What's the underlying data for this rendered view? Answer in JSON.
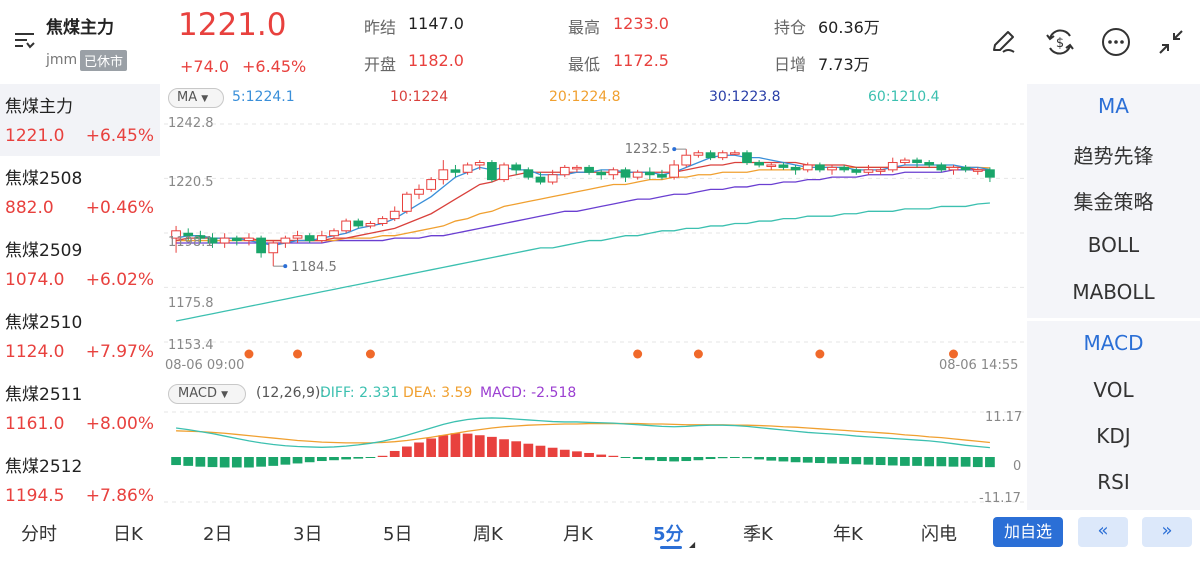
{
  "header": {
    "name": "焦煤主力",
    "code": "jmm",
    "status": "已休市",
    "price": "1221.0",
    "change": "+74.0",
    "change_pct": "+6.45%",
    "stats": [
      {
        "label": "昨结",
        "value": "1147.0",
        "color": "#222222"
      },
      {
        "label": "最高",
        "value": "1233.0",
        "color": "#e8413e"
      },
      {
        "label": "持仓",
        "value": "60.36万",
        "color": "#222222"
      },
      {
        "label": "开盘",
        "value": "1182.0",
        "color": "#e8413e"
      },
      {
        "label": "最低",
        "value": "1172.5",
        "color": "#e8413e"
      },
      {
        "label": "日增",
        "value": "7.73万",
        "color": "#222222"
      }
    ],
    "icons": [
      "edit-icon",
      "currency-exchange-icon",
      "more-icon",
      "collapse-icon"
    ]
  },
  "sidebar": {
    "items": [
      {
        "name": "焦煤主力",
        "price": "1221.0",
        "pct": "+6.45%"
      },
      {
        "name": "焦煤2508",
        "price": "882.0",
        "pct": "+0.46%"
      },
      {
        "name": "焦煤2509",
        "price": "1074.0",
        "pct": "+6.02%"
      },
      {
        "name": "焦煤2510",
        "price": "1124.0",
        "pct": "+7.97%"
      },
      {
        "name": "焦煤2511",
        "price": "1161.0",
        "pct": "+8.00%"
      },
      {
        "name": "焦煤2512",
        "price": "1194.5",
        "pct": "+7.86%"
      }
    ]
  },
  "right_panel": {
    "indicators_top": [
      "MA",
      "趋势先锋",
      "集金策略",
      "BOLL",
      "MABOLL"
    ],
    "indicators_bottom": [
      "MACD",
      "VOL",
      "KDJ",
      "RSI"
    ]
  },
  "chart": {
    "ma_selector": "MA",
    "ma_legend": [
      {
        "text": "5:1224.1",
        "color": "#3a8fd9"
      },
      {
        "text": "10:1224",
        "color": "#d9413c"
      },
      {
        "text": "20:1224.8",
        "color": "#f0a030"
      },
      {
        "text": "30:1223.8",
        "color": "#2a3fa8"
      },
      {
        "text": "60:1210.4",
        "color": "#3cc0b0"
      }
    ],
    "y_labels": [
      "1242.8",
      "1220.5",
      "1198.1",
      "1175.8",
      "1153.4"
    ],
    "time_start": "08-06 09:00",
    "time_end": "08-06 14:55",
    "high_mark": "1232.5",
    "low_mark": "1184.5",
    "macd_selector": "MACD",
    "macd_params": "(12,26,9):",
    "diff": "DIFF: 2.331",
    "dea": "DEA: 3.59",
    "macd_val": "MACD: -2.518",
    "macd_y_labels": [
      "11.17",
      "0",
      "-11.17"
    ],
    "colors": {
      "up": "#e8413e",
      "down": "#1aa56a",
      "diff": "#3cc0b0",
      "dea": "#f0a030",
      "macd": "#9b3fd1"
    }
  },
  "chart_data": {
    "type": "candlestick",
    "interval": "5分",
    "ylim": [
      1153.4,
      1242.8
    ],
    "x_range": [
      "08-06 09:00",
      "08-06 14:55"
    ],
    "candles": [
      [
        1196,
        1199,
        1190,
        1201
      ],
      [
        1198,
        1197,
        1195,
        1200
      ],
      [
        1197,
        1196,
        1194,
        1199
      ],
      [
        1196,
        1194,
        1192,
        1198
      ],
      [
        1194,
        1196,
        1192,
        1198
      ],
      [
        1196,
        1195,
        1193,
        1197
      ],
      [
        1195,
        1196,
        1193,
        1198
      ],
      [
        1196,
        1190,
        1188,
        1197
      ],
      [
        1190,
        1194,
        1184.5,
        1195
      ],
      [
        1194,
        1196,
        1192,
        1197
      ],
      [
        1196,
        1197,
        1194,
        1199
      ],
      [
        1197,
        1195,
        1194,
        1198
      ],
      [
        1195,
        1197,
        1194,
        1199
      ],
      [
        1197,
        1199,
        1196,
        1200
      ],
      [
        1199,
        1203,
        1198,
        1204
      ],
      [
        1203,
        1201,
        1200,
        1204
      ],
      [
        1201,
        1202,
        1200,
        1203
      ],
      [
        1202,
        1204,
        1201,
        1205
      ],
      [
        1204,
        1207,
        1203,
        1209
      ],
      [
        1207,
        1214,
        1206,
        1215
      ],
      [
        1214,
        1216,
        1212,
        1218
      ],
      [
        1216,
        1220,
        1215,
        1221
      ],
      [
        1220,
        1224,
        1218,
        1228
      ],
      [
        1224,
        1223,
        1221,
        1226
      ],
      [
        1223,
        1226,
        1222,
        1227
      ],
      [
        1226,
        1227,
        1224,
        1228
      ],
      [
        1227,
        1220,
        1219,
        1228
      ],
      [
        1220,
        1226,
        1219,
        1227
      ],
      [
        1226,
        1224,
        1222,
        1227
      ],
      [
        1224,
        1221,
        1220,
        1225
      ],
      [
        1221,
        1219,
        1218,
        1223
      ],
      [
        1219,
        1222,
        1218,
        1224
      ],
      [
        1222,
        1225,
        1221,
        1226
      ],
      [
        1225,
        1225,
        1223,
        1226
      ],
      [
        1225,
        1223,
        1222,
        1226
      ],
      [
        1223,
        1222,
        1220,
        1224
      ],
      [
        1222,
        1224,
        1220,
        1225
      ],
      [
        1224,
        1221,
        1219,
        1225
      ],
      [
        1221,
        1223,
        1220,
        1224
      ],
      [
        1223,
        1222,
        1220,
        1225
      ],
      [
        1222,
        1221,
        1220,
        1224
      ],
      [
        1221,
        1226,
        1220,
        1228
      ],
      [
        1226,
        1230,
        1225,
        1232.5
      ],
      [
        1230,
        1231,
        1229,
        1232
      ],
      [
        1231,
        1229,
        1228,
        1232
      ],
      [
        1229,
        1231,
        1228,
        1232
      ],
      [
        1231,
        1231,
        1230,
        1232
      ],
      [
        1231,
        1227,
        1226,
        1232
      ],
      [
        1227,
        1226,
        1225,
        1228
      ],
      [
        1226,
        1226,
        1224,
        1227
      ],
      [
        1226,
        1225,
        1224,
        1227
      ],
      [
        1225,
        1224,
        1222,
        1226
      ],
      [
        1224,
        1226,
        1223,
        1227
      ],
      [
        1226,
        1224,
        1223,
        1227
      ],
      [
        1224,
        1225,
        1222,
        1226
      ],
      [
        1225,
        1224,
        1223,
        1226
      ],
      [
        1224,
        1223,
        1222,
        1225
      ],
      [
        1223,
        1224,
        1222,
        1226
      ],
      [
        1224,
        1224,
        1222,
        1225
      ],
      [
        1224,
        1227,
        1223,
        1229
      ],
      [
        1227,
        1228,
        1226,
        1229
      ],
      [
        1228,
        1227,
        1225,
        1229
      ],
      [
        1227,
        1226,
        1225,
        1228
      ],
      [
        1226,
        1224,
        1223,
        1227
      ],
      [
        1224,
        1225,
        1222,
        1226
      ],
      [
        1225,
        1224,
        1223,
        1226
      ],
      [
        1224,
        1224,
        1222,
        1225
      ],
      [
        1224,
        1221,
        1219,
        1225
      ]
    ],
    "ma5": [
      1196,
      1197,
      1197,
      1196,
      1196,
      1196,
      1195,
      1194,
      1193,
      1194,
      1195,
      1195,
      1196,
      1197,
      1198,
      1200,
      1201,
      1202,
      1204,
      1207,
      1210,
      1213,
      1217,
      1221,
      1223,
      1225,
      1224,
      1225,
      1224,
      1224,
      1222,
      1222,
      1222,
      1223,
      1223,
      1224,
      1224,
      1223,
      1223,
      1223,
      1222,
      1223,
      1225,
      1227,
      1229,
      1230,
      1230,
      1229,
      1229,
      1228,
      1227,
      1226,
      1225,
      1225,
      1225,
      1225,
      1224,
      1224,
      1224,
      1225,
      1226,
      1226,
      1226,
      1226,
      1226,
      1225,
      1225,
      1224.1
    ],
    "ma10": [
      1195,
      1196,
      1196,
      1196,
      1196,
      1196,
      1196,
      1195,
      1195,
      1195,
      1195,
      1195,
      1195,
      1196,
      1196,
      1197,
      1198,
      1199,
      1200,
      1202,
      1204,
      1206,
      1209,
      1212,
      1215,
      1218,
      1219,
      1221,
      1222,
      1223,
      1223,
      1223,
      1223,
      1223,
      1223,
      1223,
      1223,
      1223,
      1223,
      1223,
      1223,
      1223,
      1224,
      1225,
      1226,
      1226,
      1227,
      1227,
      1227,
      1227,
      1227,
      1227,
      1226,
      1226,
      1226,
      1226,
      1225,
      1225,
      1225,
      1225,
      1225,
      1225,
      1225,
      1225,
      1225,
      1225,
      1224,
      1224
    ],
    "ma20": [
      1195,
      1195,
      1195,
      1195,
      1195,
      1195,
      1195,
      1195,
      1195,
      1195,
      1195,
      1195,
      1195,
      1195,
      1196,
      1196,
      1196,
      1197,
      1197,
      1198,
      1199,
      1200,
      1201,
      1203,
      1204,
      1206,
      1207,
      1209,
      1210,
      1211,
      1212,
      1213,
      1214,
      1215,
      1216,
      1217,
      1218,
      1218,
      1219,
      1220,
      1220,
      1221,
      1221,
      1222,
      1222,
      1223,
      1223,
      1223,
      1224,
      1224,
      1224,
      1224,
      1225,
      1225,
      1225,
      1225,
      1225,
      1225,
      1225,
      1225,
      1225,
      1225,
      1225,
      1225,
      1225,
      1225,
      1225,
      1224.8
    ],
    "ma30": [
      1194,
      1194,
      1194,
      1194,
      1194,
      1194,
      1194,
      1194,
      1194,
      1194,
      1194,
      1194,
      1194,
      1195,
      1195,
      1195,
      1195,
      1195,
      1196,
      1196,
      1196,
      1197,
      1197,
      1198,
      1199,
      1200,
      1201,
      1202,
      1203,
      1204,
      1205,
      1206,
      1207,
      1207,
      1208,
      1209,
      1210,
      1211,
      1212,
      1212,
      1213,
      1214,
      1214,
      1215,
      1216,
      1216,
      1217,
      1217,
      1218,
      1218,
      1219,
      1219,
      1220,
      1220,
      1221,
      1221,
      1221,
      1222,
      1222,
      1222,
      1223,
      1223,
      1223,
      1223,
      1224,
      1224,
      1224,
      1223.8
    ],
    "ma60": [
      1162,
      1163,
      1164,
      1165,
      1166,
      1167,
      1168,
      1169,
      1170,
      1171,
      1172,
      1173,
      1174,
      1175,
      1176,
      1177,
      1178,
      1179,
      1180,
      1181,
      1182,
      1183,
      1184,
      1185,
      1186,
      1187,
      1188,
      1189,
      1190,
      1191,
      1192,
      1192,
      1193,
      1194,
      1195,
      1195,
      1196,
      1197,
      1197,
      1198,
      1199,
      1199,
      1200,
      1200,
      1201,
      1201,
      1202,
      1202,
      1203,
      1203,
      1204,
      1204,
      1205,
      1205,
      1205,
      1206,
      1206,
      1207,
      1207,
      1207,
      1208,
      1208,
      1208,
      1209,
      1209,
      1209,
      1210,
      1210.4
    ],
    "event_markers_index": [
      6,
      10,
      16,
      38,
      43,
      53,
      64
    ],
    "macd": {
      "ylim": [
        -11.17,
        11.17
      ],
      "diff": [
        7.2,
        6.8,
        6.3,
        5.8,
        5.2,
        4.6,
        4.0,
        3.5,
        3.1,
        2.8,
        2.6,
        2.5,
        2.4,
        2.5,
        2.7,
        3.0,
        3.4,
        3.9,
        4.6,
        5.4,
        6.3,
        7.2,
        8.1,
        8.8,
        9.3,
        9.6,
        9.7,
        9.6,
        9.4,
        9.2,
        9.0,
        8.8,
        8.7,
        8.7,
        8.6,
        8.5,
        8.4,
        8.2,
        8.0,
        7.8,
        7.6,
        7.5,
        7.6,
        7.8,
        7.9,
        7.9,
        7.8,
        7.6,
        7.3,
        7.0,
        6.7,
        6.4,
        6.1,
        5.9,
        5.7,
        5.5,
        5.2,
        5.0,
        4.8,
        4.6,
        4.4,
        4.2,
        4.0,
        3.7,
        3.3,
        2.9,
        2.6,
        2.331
      ],
      "dea": [
        6.5,
        6.4,
        6.3,
        6.1,
        5.9,
        5.6,
        5.3,
        5.0,
        4.7,
        4.4,
        4.1,
        3.9,
        3.7,
        3.6,
        3.5,
        3.5,
        3.5,
        3.6,
        3.8,
        4.1,
        4.5,
        4.9,
        5.4,
        5.9,
        6.4,
        6.8,
        7.2,
        7.5,
        7.7,
        7.9,
        8.0,
        8.1,
        8.2,
        8.2,
        8.3,
        8.3,
        8.3,
        8.3,
        8.3,
        8.2,
        8.2,
        8.1,
        8.0,
        8.0,
        8.0,
        8.0,
        7.9,
        7.9,
        7.8,
        7.7,
        7.5,
        7.4,
        7.2,
        7.0,
        6.8,
        6.6,
        6.4,
        6.2,
        6.0,
        5.8,
        5.5,
        5.3,
        5.0,
        4.8,
        4.5,
        4.2,
        3.9,
        3.59
      ],
      "hist": [
        -2.0,
        -2.2,
        -2.4,
        -2.5,
        -2.6,
        -2.6,
        -2.6,
        -2.4,
        -2.2,
        -1.9,
        -1.6,
        -1.3,
        -1.0,
        -0.8,
        -0.6,
        -0.4,
        -0.2,
        0.3,
        1.5,
        2.6,
        3.6,
        4.6,
        5.4,
        5.9,
        5.8,
        5.4,
        5.0,
        4.4,
        3.9,
        3.3,
        2.8,
        2.3,
        1.8,
        1.4,
        1.0,
        0.6,
        0.3,
        -0.1,
        -0.5,
        -0.8,
        -1.0,
        -1.1,
        -1.0,
        -0.8,
        -0.5,
        -0.3,
        -0.2,
        -0.3,
        -0.6,
        -0.9,
        -1.1,
        -1.3,
        -1.4,
        -1.5,
        -1.6,
        -1.7,
        -1.8,
        -1.9,
        -2.0,
        -2.1,
        -2.2,
        -2.2,
        -2.3,
        -2.3,
        -2.4,
        -2.4,
        -2.5,
        -2.518
      ]
    }
  },
  "tabs": {
    "items": [
      "分时",
      "日K",
      "2日",
      "3日",
      "5日",
      "周K",
      "月K",
      "5分",
      "季K",
      "年K",
      "闪电"
    ],
    "selected": 7,
    "add_fav": "加自选",
    "prev": "«",
    "next": "»"
  }
}
